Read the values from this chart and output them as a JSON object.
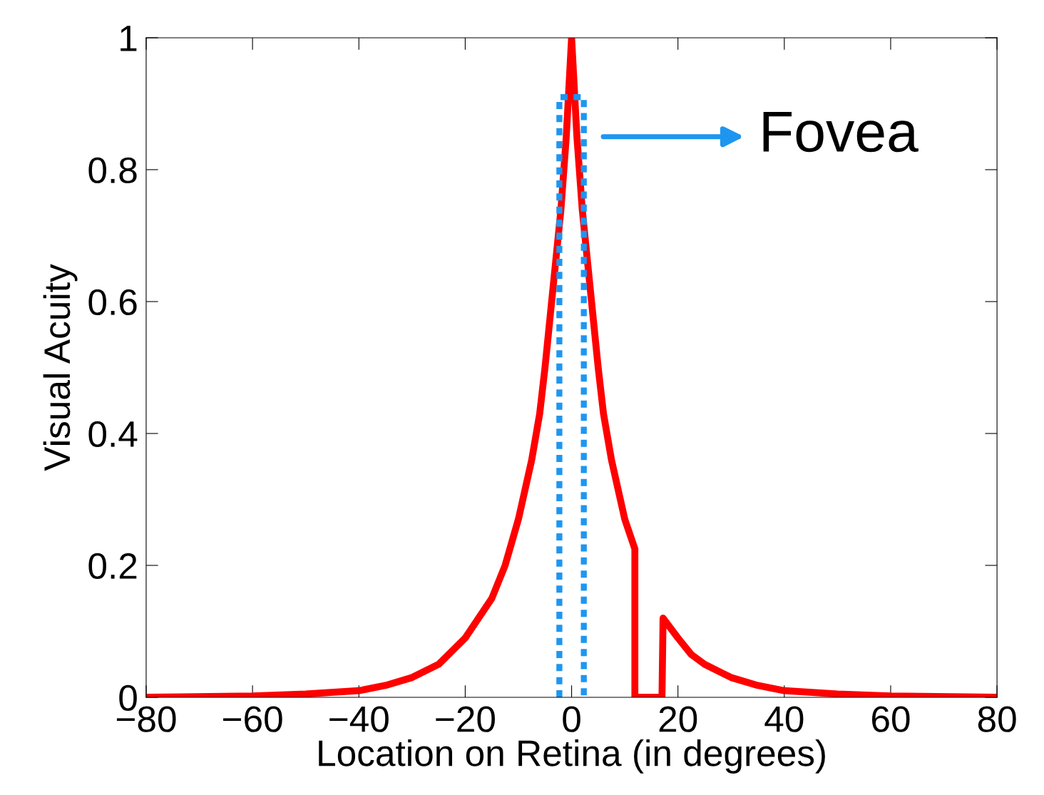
{
  "chart_data": {
    "type": "line",
    "xlabel": "Location on Retina (in degrees)",
    "ylabel": "Visual Acuity",
    "series": [
      {
        "color": "#ff0000",
        "line_style": "solid",
        "x": [
          -80,
          -60,
          -50,
          -40,
          -35,
          -30,
          -25,
          -20,
          -17.5,
          -15,
          -12.5,
          -10,
          -7.5,
          -6,
          -5,
          -4,
          -3,
          -2,
          -1,
          0,
          1,
          2,
          3,
          4,
          5,
          6,
          7.5,
          10,
          11.9,
          11.9,
          17.0,
          17.2,
          20,
          22.5,
          25,
          30,
          35,
          40,
          50,
          60,
          80
        ],
        "values": [
          0,
          0.002,
          0.005,
          0.01,
          0.018,
          0.03,
          0.05,
          0.09,
          0.12,
          0.15,
          0.2,
          0.27,
          0.36,
          0.43,
          0.5,
          0.58,
          0.66,
          0.74,
          0.85,
          1,
          0.85,
          0.74,
          0.66,
          0.58,
          0.5,
          0.43,
          0.36,
          0.27,
          0.225,
          0,
          0,
          0.12,
          0.09,
          0.065,
          0.05,
          0.03,
          0.018,
          0.01,
          0.005,
          0.002,
          0
        ]
      },
      {
        "color": "#1e96f0",
        "line_style": "dotted",
        "x": [
          -2.3,
          -2.3,
          2.3,
          2.3
        ],
        "values": [
          0,
          0.91,
          0.91,
          0
        ]
      }
    ],
    "annotations": [
      "Fovea"
    ],
    "xlim": [
      -80,
      80
    ],
    "ylim": [
      0,
      1
    ],
    "xticks": [
      {
        "value": -80,
        "label": "−80"
      },
      {
        "value": -60,
        "label": "−60"
      },
      {
        "value": -40,
        "label": "−40"
      },
      {
        "value": -20,
        "label": "−20"
      },
      0,
      20,
      40,
      60,
      80
    ],
    "yticks": [
      0,
      0.2,
      0.4,
      0.6,
      0.8,
      1
    ],
    "grid": false,
    "legend": false,
    "marker": "none"
  }
}
